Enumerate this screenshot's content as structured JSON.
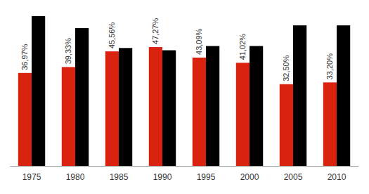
{
  "chart_data": {
    "type": "bar",
    "categories": [
      "1975",
      "1980",
      "1985",
      "1990",
      "1995",
      "2000",
      "2005",
      "2010"
    ],
    "series": [
      {
        "color": "#d9230f",
        "values": [
          36.97,
          39.33,
          45.56,
          47.27,
          43.09,
          41.02,
          32.5,
          33.2
        ],
        "value_labels": [
          "36,97%",
          "39,33%",
          "45,56%",
          "47,27%",
          "43,09%",
          "41,02%",
          "32,50%",
          "33,20%"
        ],
        "data_labels": true
      },
      {
        "color": "#000000",
        "values": [
          59.6,
          54.8,
          46.9,
          46.0,
          47.7,
          47.7,
          55.9,
          55.9
        ]
      }
    ],
    "ylim": [
      0,
      66
    ],
    "tick_labels": "x"
  }
}
